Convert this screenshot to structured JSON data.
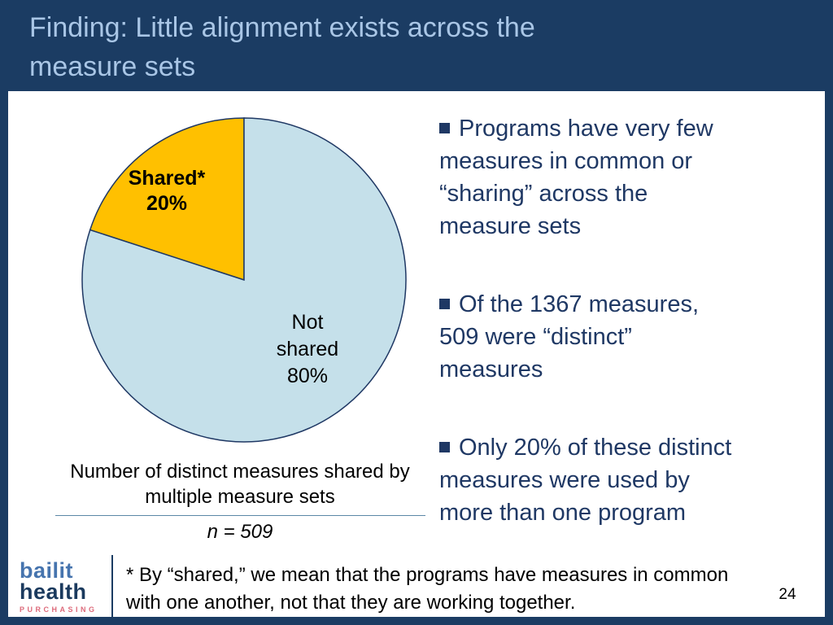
{
  "slide": {
    "title": "Finding: Little alignment exists across the\nmeasure sets",
    "page_number": "24"
  },
  "colors": {
    "background_navy": "#1b3c63",
    "title_text": "#a9c6e6",
    "bullet_text": "#1f3864",
    "pie_stroke": "#1f3864",
    "logo_bailit": "#4674ae",
    "logo_health": "#1b3a5e",
    "logo_purchasing": "#dd6b7b"
  },
  "chart_data": {
    "type": "pie",
    "title": "Number of distinct measures shared by\nmultiple measure sets",
    "n_label": "n = 509",
    "slices": [
      {
        "label": "Shared*",
        "pct": "20%",
        "value": 20,
        "color": "#ffc000"
      },
      {
        "label": "Not shared",
        "pct": "80%",
        "value": 80,
        "color": "#c5e0ea"
      }
    ]
  },
  "bullets": [
    "Programs have very few\nmeasures in common or\n“sharing” across the\nmeasure sets",
    "Of the 1367 measures,\n509 were “distinct”\nmeasures",
    "Only 20% of these distinct\nmeasures were used by\nmore than one program"
  ],
  "footnote": "* By “shared,” we mean that the programs have measures in common\nwith one another, not that they are working together.",
  "logo": {
    "line1": "bailit",
    "line2": "health",
    "line3": "PURCHASING"
  }
}
